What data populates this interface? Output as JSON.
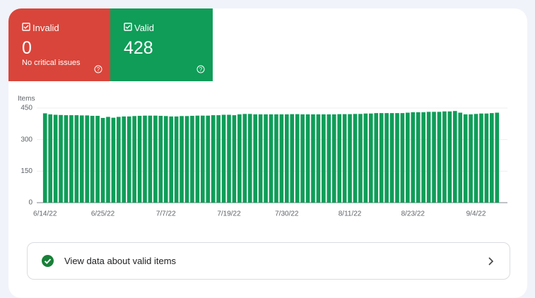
{
  "cards": [
    {
      "label": "Invalid",
      "value": 0,
      "note": "No critical issues"
    },
    {
      "label": "Valid",
      "value": 428
    }
  ],
  "chart_data": {
    "type": "bar",
    "y_label": "Items",
    "color": "#0f9d58",
    "categories": [
      "6/14/22",
      null,
      null,
      null,
      null,
      null,
      null,
      null,
      null,
      null,
      null,
      "6/25/22",
      null,
      null,
      null,
      null,
      null,
      null,
      null,
      null,
      null,
      null,
      null,
      "7/7/22",
      null,
      null,
      null,
      null,
      null,
      null,
      null,
      null,
      null,
      null,
      null,
      "7/19/22",
      null,
      null,
      null,
      null,
      null,
      null,
      null,
      null,
      null,
      null,
      "7/30/22",
      null,
      null,
      null,
      null,
      null,
      null,
      null,
      null,
      null,
      null,
      null,
      "8/11/22",
      null,
      null,
      null,
      null,
      null,
      null,
      null,
      null,
      null,
      null,
      null,
      "8/23/22",
      null,
      null,
      null,
      null,
      null,
      null,
      null,
      null,
      null,
      null,
      null,
      "9/4/22",
      null,
      null,
      null,
      null
    ],
    "values": [
      425,
      420,
      418,
      417,
      416,
      416,
      416,
      415,
      415,
      413,
      413,
      403,
      408,
      404,
      408,
      410,
      410,
      412,
      413,
      414,
      414,
      414,
      413,
      412,
      410,
      410,
      412,
      412,
      413,
      414,
      414,
      414,
      416,
      416,
      418,
      418,
      416,
      420,
      422,
      422,
      420,
      420,
      420,
      420,
      420,
      420,
      420,
      421,
      421,
      420,
      420,
      420,
      420,
      420,
      420,
      420,
      421,
      421,
      421,
      422,
      422,
      424,
      424,
      426,
      426,
      426,
      426,
      426,
      426,
      428,
      430,
      430,
      430,
      432,
      432,
      432,
      434,
      434,
      436,
      428,
      420,
      420,
      422,
      424,
      424,
      426,
      428
    ],
    "ylim": [
      0,
      450
    ],
    "yticks": [
      0,
      150,
      300,
      450
    ],
    "grid": true
  },
  "link": {
    "text": "View data about valid items"
  }
}
